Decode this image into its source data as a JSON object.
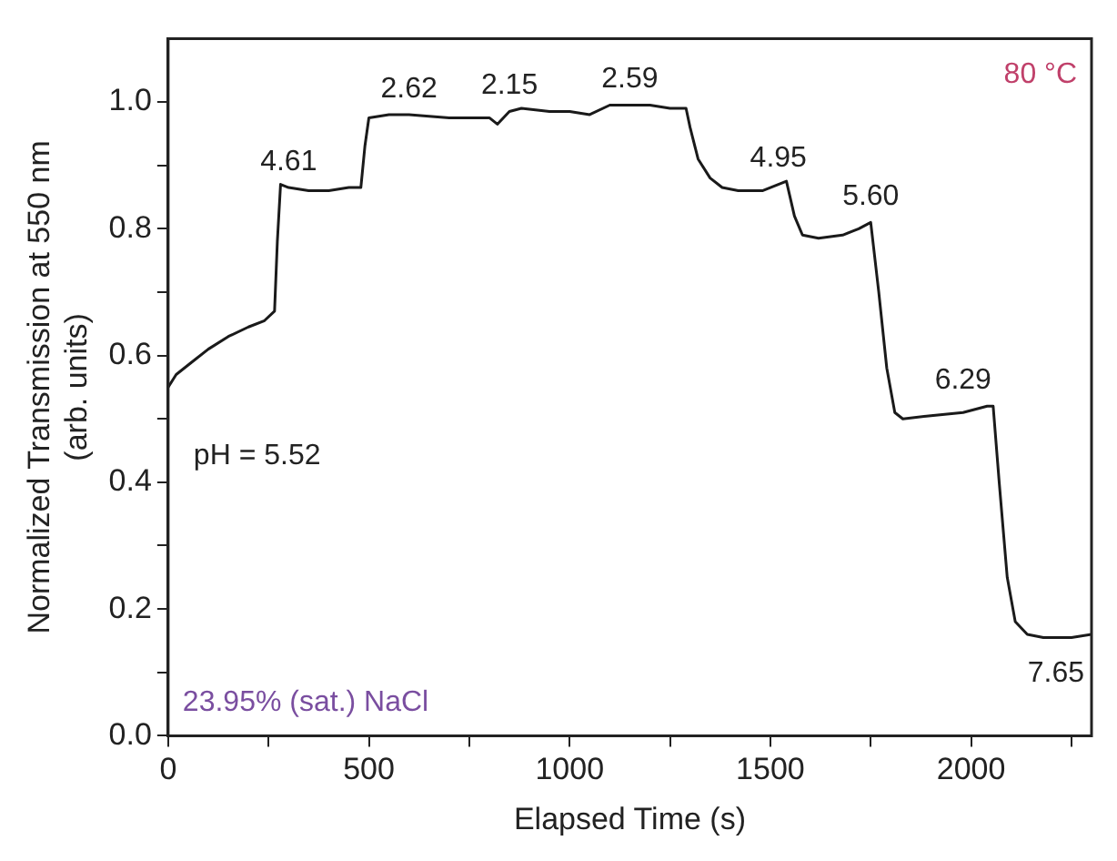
{
  "chart_data": {
    "type": "line",
    "xlabel": "Elapsed Time (s)",
    "ylabel": "Normalized Transmission at 550 nm\n(arb. units)",
    "xlim": [
      0,
      2300
    ],
    "ylim": [
      0,
      1.1
    ],
    "xticks": [
      0,
      {
        "value": 250,
        "label": null
      },
      500,
      {
        "value": 750,
        "label": null
      },
      1000,
      {
        "value": 1250,
        "label": null
      },
      1500,
      {
        "value": 1750,
        "label": null
      },
      2000,
      {
        "value": 2250,
        "label": null
      }
    ],
    "yticks": [
      {
        "value": 0,
        "label": "0.0"
      },
      {
        "value": 0.1,
        "label": null
      },
      {
        "value": 0.2,
        "label": "0.2"
      },
      {
        "value": 0.3,
        "label": null
      },
      {
        "value": 0.4,
        "label": "0.4"
      },
      {
        "value": 0.5,
        "label": null
      },
      {
        "value": 0.6,
        "label": "0.6"
      },
      {
        "value": 0.7,
        "label": null
      },
      {
        "value": 0.8,
        "label": "0.8"
      },
      {
        "value": 0.9,
        "label": null
      },
      {
        "value": 1,
        "label": "1.0"
      }
    ],
    "grid": false,
    "legend": false,
    "marker": "none",
    "line_style": "solid",
    "series": [
      {
        "color": "#1a1a1a",
        "x": [
          0,
          20,
          60,
          100,
          150,
          200,
          240,
          265,
          272,
          280,
          300,
          350,
          400,
          450,
          480,
          490,
          500,
          550,
          600,
          700,
          800,
          820,
          850,
          880,
          950,
          1000,
          1050,
          1100,
          1150,
          1200,
          1250,
          1290,
          1300,
          1320,
          1350,
          1380,
          1420,
          1480,
          1520,
          1540,
          1560,
          1580,
          1620,
          1680,
          1720,
          1750,
          1770,
          1790,
          1810,
          1830,
          1900,
          1980,
          2040,
          2055,
          2070,
          2090,
          2110,
          2140,
          2180,
          2250,
          2300
        ],
        "values": [
          0.55,
          0.57,
          0.59,
          0.61,
          0.63,
          0.645,
          0.655,
          0.67,
          0.78,
          0.87,
          0.865,
          0.86,
          0.86,
          0.865,
          0.865,
          0.93,
          0.975,
          0.98,
          0.98,
          0.975,
          0.975,
          0.965,
          0.985,
          0.99,
          0.985,
          0.985,
          0.98,
          0.995,
          0.995,
          0.995,
          0.99,
          0.99,
          0.96,
          0.91,
          0.88,
          0.865,
          0.86,
          0.86,
          0.87,
          0.875,
          0.82,
          0.79,
          0.785,
          0.79,
          0.8,
          0.81,
          0.7,
          0.58,
          0.51,
          0.5,
          0.505,
          0.51,
          0.52,
          0.52,
          0.4,
          0.25,
          0.18,
          0.16,
          0.155,
          0.155,
          0.16
        ]
      }
    ],
    "annotations": [
      "80 °C",
      "23.95% (sat.) NaCl",
      {
        "text": "pH = 5.52",
        "x": 0,
        "y": 0.55
      },
      {
        "text": "4.61",
        "x": 300,
        "y": 0.865
      },
      {
        "text": "2.62",
        "x": 600,
        "y": 0.98
      },
      {
        "text": "2.15",
        "x": 850,
        "y": 0.985
      },
      {
        "text": "2.59",
        "x": 1150,
        "y": 0.995
      },
      {
        "text": "4.95",
        "x": 1520,
        "y": 0.87
      },
      {
        "text": "5.60",
        "x": 1750,
        "y": 0.81
      },
      {
        "text": "6.29",
        "x": 1980,
        "y": 0.52
      },
      {
        "text": "7.65",
        "x": 2250,
        "y": 0.155
      }
    ]
  }
}
